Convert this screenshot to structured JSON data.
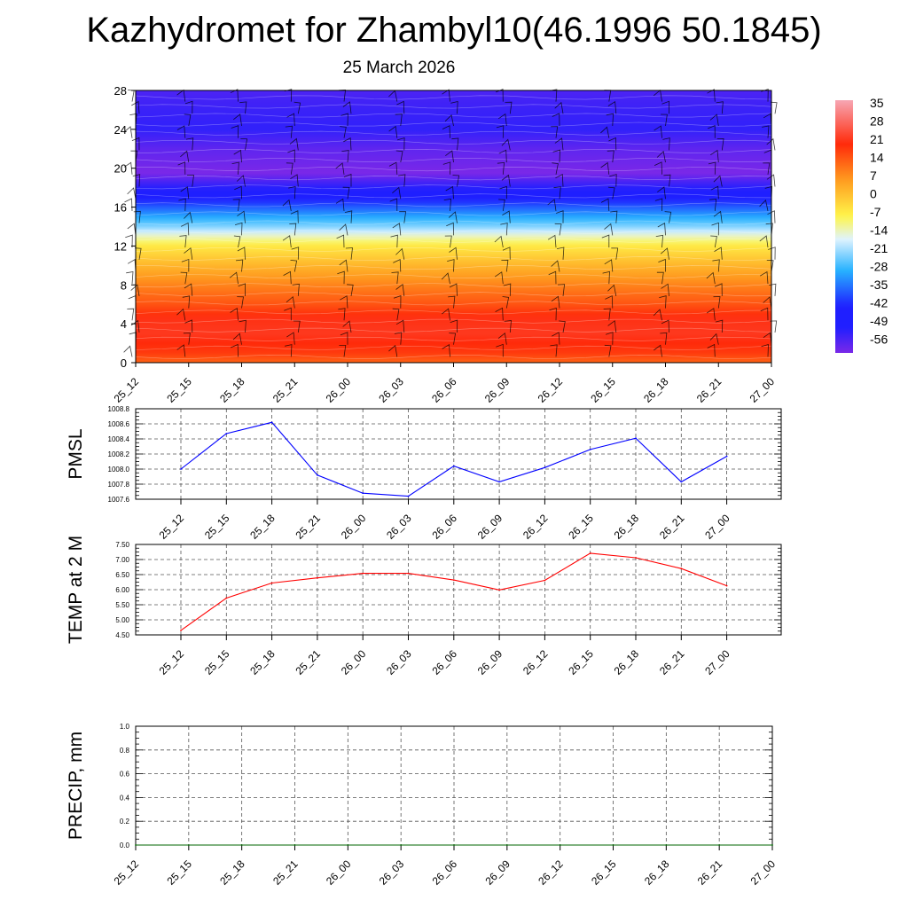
{
  "title": "Kazhydromet for Zhambyl10(46.1996 50.1845)",
  "subtitle": "25 March 2026",
  "times": [
    "25_12",
    "25_15",
    "25_18",
    "25_21",
    "26_00",
    "26_03",
    "26_06",
    "26_09",
    "26_12",
    "26_15",
    "26_18",
    "26_21",
    "27_00"
  ],
  "chart_data": [
    {
      "type": "heatmap",
      "name": "temperature-height-cross-section",
      "x_categories": [
        "25_12",
        "25_15",
        "25_18",
        "25_21",
        "26_00",
        "26_03",
        "26_06",
        "26_09",
        "26_12",
        "26_15",
        "26_18",
        "26_21",
        "27_00"
      ],
      "y_ticks": [
        0,
        4,
        8,
        12,
        16,
        20,
        24,
        28
      ],
      "ylim": [
        0,
        28
      ],
      "colorbar": {
        "labels": [
          35,
          28,
          21,
          14,
          7,
          0,
          -7,
          -14,
          -21,
          -28,
          -35,
          -42,
          -49,
          -56
        ],
        "range": [
          -60,
          38
        ],
        "colors": {
          "cold": "#7a28e8",
          "blue": "#1f1fff",
          "sky": "#27b3ff",
          "pale": "#dff3ff",
          "yellow": "#fff54a",
          "orange": "#ff9c1f",
          "red": "#ff2a0a",
          "pink": "#f7a6b3"
        }
      },
      "temperature_profile_by_height": [
        {
          "z": 0,
          "t": 14
        },
        {
          "z": 1,
          "t": 19
        },
        {
          "z": 3,
          "t": 23
        },
        {
          "z": 4.5,
          "t": 22
        },
        {
          "z": 6,
          "t": 16
        },
        {
          "z": 8,
          "t": 10
        },
        {
          "z": 10,
          "t": 3
        },
        {
          "z": 12,
          "t": -5
        },
        {
          "z": 13,
          "t": -13
        },
        {
          "z": 14,
          "t": -22
        },
        {
          "z": 16,
          "t": -36
        },
        {
          "z": 17.5,
          "t": -48
        },
        {
          "z": 18.5,
          "t": -54
        },
        {
          "z": 19.5,
          "t": -60
        },
        {
          "z": 22,
          "t": -57
        },
        {
          "z": 24,
          "t": -52
        },
        {
          "z": 26,
          "t": -53
        },
        {
          "z": 28,
          "t": -55
        }
      ],
      "wind_barbs": "wind barbs drawn at each time column"
    },
    {
      "type": "line",
      "name": "pmsl",
      "ylabel": "PMSL",
      "categories": [
        "25_12",
        "25_15",
        "25_18",
        "25_21",
        "26_00",
        "26_03",
        "26_06",
        "26_09",
        "26_12",
        "26_15",
        "26_18",
        "26_21",
        "27_00"
      ],
      "values": [
        1008.0,
        1008.47,
        1008.62,
        1007.92,
        1007.68,
        1007.64,
        1008.04,
        1007.83,
        1008.02,
        1008.26,
        1008.41,
        1007.83,
        1008.17
      ],
      "ylim": [
        1007.6,
        1008.8
      ],
      "yticks": [
        "1007.6",
        "1007.8",
        "1008.0",
        "1008.2",
        "1008.4",
        "1008.6",
        "1008.8"
      ],
      "color": "#0000ff"
    },
    {
      "type": "line",
      "name": "temp-2m",
      "ylabel": "TEMP at 2 M",
      "categories": [
        "25_12",
        "25_15",
        "25_18",
        "25_21",
        "26_00",
        "26_03",
        "26_06",
        "26_09",
        "26_12",
        "26_15",
        "26_18",
        "26_21",
        "27_00"
      ],
      "values": [
        4.65,
        5.72,
        6.22,
        6.39,
        6.54,
        6.54,
        6.32,
        5.99,
        6.31,
        7.21,
        7.06,
        6.7,
        6.13
      ],
      "ylim": [
        4.5,
        7.5
      ],
      "yticks": [
        "4.50",
        "5.00",
        "5.50",
        "6.00",
        "6.50",
        "7.00",
        "7.50"
      ],
      "color": "#ff0000"
    },
    {
      "type": "line",
      "name": "precip",
      "ylabel": "PRECIP, mm",
      "categories": [
        "25_12",
        "25_15",
        "25_18",
        "25_21",
        "26_00",
        "26_03",
        "26_06",
        "26_09",
        "26_12",
        "26_15",
        "26_18",
        "26_21",
        "27_00"
      ],
      "values": [
        0,
        0,
        0,
        0,
        0,
        0,
        0,
        0,
        0,
        0,
        0,
        0,
        0
      ],
      "ylim": [
        0,
        1.0
      ],
      "yticks": [
        "0.0",
        "0.2",
        "0.4",
        "0.6",
        "0.8",
        "1.0"
      ],
      "color": "#006400"
    }
  ]
}
